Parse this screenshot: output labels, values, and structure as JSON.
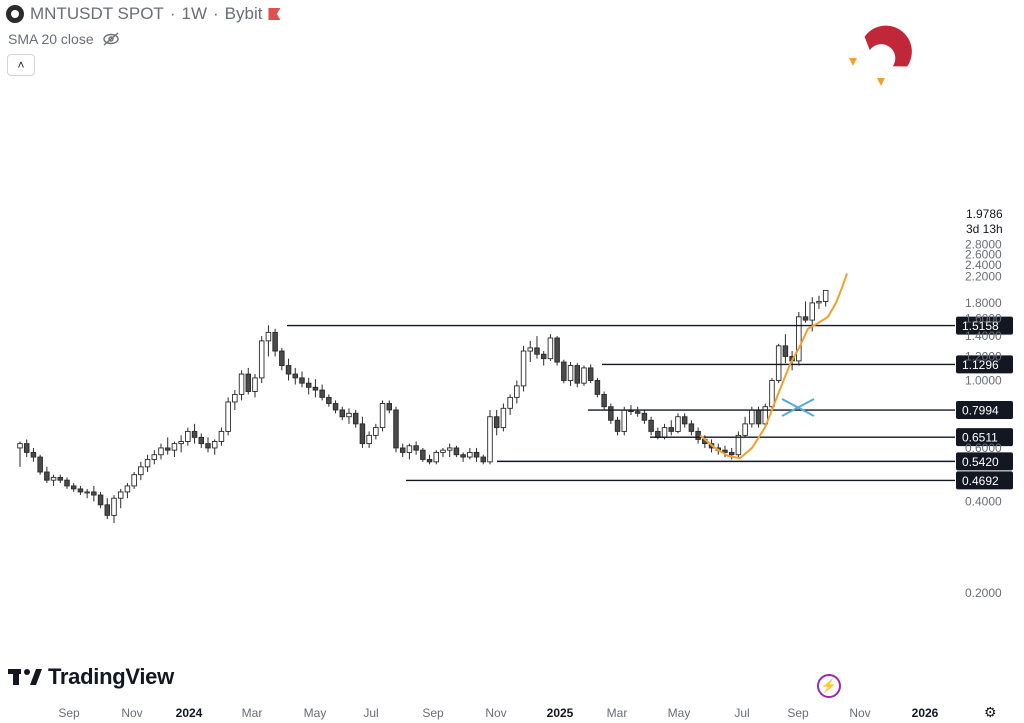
{
  "header": {
    "symbol": "MNTUSDT SPOT",
    "interval": "1W",
    "exchange": "Bybit",
    "sep": "·"
  },
  "indicator": {
    "label": "SMA 20 close"
  },
  "brand": {
    "name": "TradingView"
  },
  "price_axis": {
    "ticks": [
      "2.8000",
      "2.6000",
      "2.4000",
      "2.2000",
      "1.8000",
      "1.6000",
      "1.4000",
      "1.2000",
      "1.0000",
      "0.6000",
      "0.4000",
      "0.2000"
    ],
    "last_price": "1.9786",
    "countdown": "3d 13h"
  },
  "time_axis": {
    "ticks": [
      "Sep",
      "Nov",
      "2024",
      "Mar",
      "May",
      "Jul",
      "Sep",
      "Nov",
      "2025",
      "Mar",
      "May",
      "Jul",
      "Sep",
      "Nov",
      "2026"
    ]
  },
  "levels": [
    {
      "label": "1.5158",
      "value": 1.5158
    },
    {
      "label": "1.1296",
      "value": 1.1296
    },
    {
      "label": "0.7994",
      "value": 0.7994
    },
    {
      "label": "0.6511",
      "value": 0.6511
    },
    {
      "label": "0.5420",
      "value": 0.542
    },
    {
      "label": "0.4692",
      "value": 0.4692
    }
  ],
  "colors": {
    "up_candle": "#ffffff",
    "down_candle": "#4a4a4a",
    "outline": "#2a2a2a",
    "curve": "#f0a030",
    "cross": "#5aa8d8",
    "magnet": "#c0283a"
  },
  "chart_data": {
    "type": "candlestick",
    "scale": "log",
    "ylim": [
      0.2,
      2.8
    ],
    "x_start_label": "Aug 2023",
    "interval": "1W",
    "ohlc": [
      [
        0.6,
        0.63,
        0.52,
        0.62
      ],
      [
        0.62,
        0.64,
        0.56,
        0.58
      ],
      [
        0.58,
        0.6,
        0.54,
        0.56
      ],
      [
        0.56,
        0.57,
        0.49,
        0.5
      ],
      [
        0.5,
        0.52,
        0.46,
        0.47
      ],
      [
        0.47,
        0.49,
        0.45,
        0.48
      ],
      [
        0.48,
        0.49,
        0.46,
        0.47
      ],
      [
        0.47,
        0.48,
        0.44,
        0.45
      ],
      [
        0.45,
        0.46,
        0.43,
        0.44
      ],
      [
        0.44,
        0.45,
        0.42,
        0.43
      ],
      [
        0.43,
        0.44,
        0.41,
        0.43
      ],
      [
        0.43,
        0.45,
        0.4,
        0.42
      ],
      [
        0.42,
        0.43,
        0.38,
        0.39
      ],
      [
        0.39,
        0.41,
        0.35,
        0.36
      ],
      [
        0.36,
        0.42,
        0.34,
        0.41
      ],
      [
        0.41,
        0.44,
        0.38,
        0.43
      ],
      [
        0.43,
        0.46,
        0.41,
        0.45
      ],
      [
        0.45,
        0.5,
        0.44,
        0.49
      ],
      [
        0.49,
        0.54,
        0.47,
        0.52
      ],
      [
        0.52,
        0.57,
        0.5,
        0.55
      ],
      [
        0.55,
        0.59,
        0.53,
        0.57
      ],
      [
        0.57,
        0.62,
        0.55,
        0.6
      ],
      [
        0.6,
        0.65,
        0.57,
        0.59
      ],
      [
        0.59,
        0.63,
        0.56,
        0.62
      ],
      [
        0.62,
        0.66,
        0.58,
        0.63
      ],
      [
        0.63,
        0.7,
        0.61,
        0.68
      ],
      [
        0.68,
        0.72,
        0.62,
        0.65
      ],
      [
        0.65,
        0.67,
        0.6,
        0.62
      ],
      [
        0.62,
        0.65,
        0.58,
        0.6
      ],
      [
        0.6,
        0.64,
        0.57,
        0.63
      ],
      [
        0.63,
        0.7,
        0.61,
        0.68
      ],
      [
        0.68,
        0.88,
        0.66,
        0.85
      ],
      [
        0.85,
        0.93,
        0.8,
        0.9
      ],
      [
        0.9,
        1.08,
        0.86,
        1.05
      ],
      [
        1.05,
        1.1,
        0.9,
        0.92
      ],
      [
        0.92,
        1.05,
        0.88,
        1.02
      ],
      [
        1.02,
        1.4,
        0.98,
        1.35
      ],
      [
        1.35,
        1.52,
        1.2,
        1.44
      ],
      [
        1.44,
        1.48,
        1.2,
        1.25
      ],
      [
        1.25,
        1.28,
        1.08,
        1.12
      ],
      [
        1.12,
        1.18,
        1.0,
        1.05
      ],
      [
        1.05,
        1.1,
        0.97,
        1.02
      ],
      [
        1.02,
        1.07,
        0.95,
        0.98
      ],
      [
        0.98,
        1.02,
        0.9,
        0.95
      ],
      [
        0.95,
        1.01,
        0.88,
        0.93
      ],
      [
        0.93,
        0.97,
        0.86,
        0.88
      ],
      [
        0.88,
        0.9,
        0.82,
        0.84
      ],
      [
        0.84,
        0.86,
        0.78,
        0.8
      ],
      [
        0.8,
        0.82,
        0.74,
        0.76
      ],
      [
        0.76,
        0.81,
        0.72,
        0.78
      ],
      [
        0.78,
        0.8,
        0.7,
        0.72
      ],
      [
        0.72,
        0.76,
        0.6,
        0.62
      ],
      [
        0.62,
        0.68,
        0.6,
        0.66
      ],
      [
        0.66,
        0.72,
        0.64,
        0.7
      ],
      [
        0.7,
        0.86,
        0.68,
        0.84
      ],
      [
        0.84,
        0.86,
        0.78,
        0.8
      ],
      [
        0.8,
        0.82,
        0.58,
        0.6
      ],
      [
        0.6,
        0.62,
        0.56,
        0.58
      ],
      [
        0.58,
        0.62,
        0.55,
        0.61
      ],
      [
        0.61,
        0.63,
        0.57,
        0.59
      ],
      [
        0.59,
        0.6,
        0.54,
        0.55
      ],
      [
        0.55,
        0.57,
        0.53,
        0.54
      ],
      [
        0.54,
        0.59,
        0.53,
        0.58
      ],
      [
        0.58,
        0.6,
        0.56,
        0.59
      ],
      [
        0.59,
        0.62,
        0.56,
        0.6
      ],
      [
        0.6,
        0.61,
        0.56,
        0.57
      ],
      [
        0.57,
        0.58,
        0.54,
        0.56
      ],
      [
        0.56,
        0.6,
        0.55,
        0.58
      ],
      [
        0.58,
        0.6,
        0.54,
        0.56
      ],
      [
        0.56,
        0.57,
        0.53,
        0.54
      ],
      [
        0.54,
        0.8,
        0.53,
        0.76
      ],
      [
        0.76,
        0.8,
        0.66,
        0.7
      ],
      [
        0.7,
        0.84,
        0.68,
        0.81
      ],
      [
        0.81,
        0.9,
        0.77,
        0.88
      ],
      [
        0.88,
        1.0,
        0.84,
        0.96
      ],
      [
        0.96,
        1.3,
        0.92,
        1.25
      ],
      [
        1.25,
        1.35,
        1.15,
        1.28
      ],
      [
        1.28,
        1.4,
        1.18,
        1.22
      ],
      [
        1.22,
        1.25,
        1.12,
        1.18
      ],
      [
        1.18,
        1.42,
        1.16,
        1.38
      ],
      [
        1.38,
        1.4,
        1.12,
        1.15
      ],
      [
        1.15,
        1.17,
        0.98,
        1.0
      ],
      [
        1.0,
        1.15,
        0.96,
        1.12
      ],
      [
        1.12,
        1.14,
        0.95,
        0.98
      ],
      [
        0.98,
        1.12,
        0.96,
        1.1
      ],
      [
        1.1,
        1.13,
        0.98,
        1.0
      ],
      [
        1.0,
        1.02,
        0.88,
        0.9
      ],
      [
        0.9,
        0.92,
        0.8,
        0.82
      ],
      [
        0.82,
        0.84,
        0.72,
        0.74
      ],
      [
        0.74,
        0.76,
        0.66,
        0.68
      ],
      [
        0.68,
        0.82,
        0.66,
        0.8
      ],
      [
        0.8,
        0.83,
        0.77,
        0.79
      ],
      [
        0.79,
        0.82,
        0.76,
        0.78
      ],
      [
        0.78,
        0.8,
        0.72,
        0.74
      ],
      [
        0.74,
        0.76,
        0.66,
        0.68
      ],
      [
        0.68,
        0.7,
        0.64,
        0.65
      ],
      [
        0.65,
        0.72,
        0.64,
        0.7
      ],
      [
        0.7,
        0.74,
        0.66,
        0.68
      ],
      [
        0.68,
        0.78,
        0.67,
        0.76
      ],
      [
        0.76,
        0.78,
        0.7,
        0.72
      ],
      [
        0.72,
        0.74,
        0.66,
        0.68
      ],
      [
        0.68,
        0.7,
        0.62,
        0.64
      ],
      [
        0.64,
        0.66,
        0.6,
        0.62
      ],
      [
        0.62,
        0.64,
        0.58,
        0.6
      ],
      [
        0.6,
        0.62,
        0.57,
        0.59
      ],
      [
        0.59,
        0.61,
        0.56,
        0.58
      ],
      [
        0.58,
        0.6,
        0.55,
        0.57
      ],
      [
        0.57,
        0.68,
        0.56,
        0.66
      ],
      [
        0.66,
        0.76,
        0.65,
        0.72
      ],
      [
        0.72,
        0.82,
        0.7,
        0.8
      ],
      [
        0.8,
        0.82,
        0.7,
        0.72
      ],
      [
        0.72,
        0.84,
        0.7,
        0.82
      ],
      [
        0.82,
        1.02,
        0.8,
        1.0
      ],
      [
        1.0,
        1.32,
        0.98,
        1.3
      ],
      [
        1.3,
        1.42,
        1.14,
        1.2
      ],
      [
        1.2,
        1.25,
        1.08,
        1.16
      ],
      [
        1.16,
        1.68,
        1.12,
        1.62
      ],
      [
        1.62,
        1.82,
        1.55,
        1.58
      ],
      [
        1.58,
        1.88,
        1.45,
        1.8
      ],
      [
        1.8,
        1.9,
        1.72,
        1.82
      ],
      [
        1.82,
        1.98,
        1.75,
        1.9786
      ]
    ],
    "horizontal_levels": [
      1.5158,
      1.1296,
      0.7994,
      0.6511,
      0.542,
      0.4692
    ],
    "projection_curve": "orange arc from 0.55 (Jun 2025) curving up to 2.25 (Oct 2025)"
  }
}
